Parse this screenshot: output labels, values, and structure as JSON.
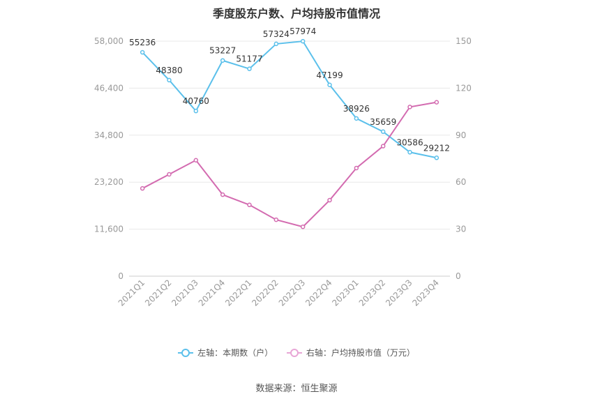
{
  "title": "季度股东户数、户均持股市值情况",
  "source": "数据来源：恒生聚源",
  "colors": {
    "left_series": "#5bc0eb",
    "right_series": "#d36bb0",
    "grid": "#e8e8e8"
  },
  "legend": {
    "left": "左轴：本期数（户）",
    "right": "右轴：户均持股市值（万元）"
  },
  "chart_data": {
    "type": "line",
    "categories": [
      "2021Q1",
      "2021Q2",
      "2021Q3",
      "2021Q4",
      "2022Q1",
      "2022Q2",
      "2022Q3",
      "2022Q4",
      "2023Q1",
      "2023Q2",
      "2023Q3",
      "2023Q4"
    ],
    "y_left": {
      "ticks": [
        0,
        11600,
        23200,
        34800,
        46400,
        58000
      ],
      "tick_labels": [
        "0",
        "11,600",
        "23,200",
        "34,800",
        "46,400",
        "58,000"
      ],
      "lim": [
        0,
        58000
      ]
    },
    "y_right": {
      "ticks": [
        0,
        30,
        60,
        90,
        120,
        150
      ],
      "tick_labels": [
        "0",
        "30",
        "60",
        "90",
        "120",
        "150"
      ],
      "lim": [
        0,
        150
      ]
    },
    "grid": true,
    "legend_position": "bottom",
    "series": [
      {
        "name": "左轴：本期数（户）",
        "axis": "left",
        "values": [
          55236,
          48380,
          40760,
          53227,
          51177,
          57324,
          57974,
          47199,
          38926,
          35659,
          30586,
          29212
        ],
        "labels": [
          "55236",
          "48380",
          "40760",
          "53227",
          "51177",
          "57324",
          "57974",
          "47199",
          "38926",
          "35659",
          "30586",
          "29212"
        ]
      },
      {
        "name": "右轴：户均持股市值（万元）",
        "axis": "right",
        "values": [
          56,
          65,
          74,
          52,
          45.5,
          36,
          31.5,
          48.5,
          69,
          83,
          108,
          111
        ]
      }
    ]
  }
}
